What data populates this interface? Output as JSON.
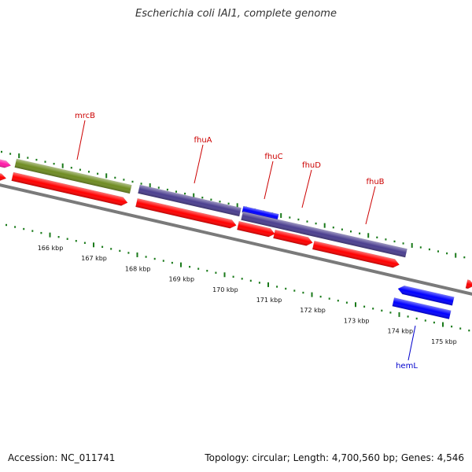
{
  "title": "Escherichia coli IAI1, complete genome",
  "footer": {
    "accession": "Accession: NC_011741",
    "topology": "Topology: circular; Length: 4,700,560 bp; Genes: 4,546"
  },
  "colors": {
    "backbone": "#7a7a7a",
    "tick": "#1a7a1a",
    "label_red": "#cc0000",
    "label_blue": "#0000cc",
    "gene_red": "#ff0000",
    "gene_green": "#6f8c22",
    "gene_purple": "#4b3f8f",
    "gene_blue": "#0000ff",
    "gene_pink": "#ff1aa8"
  },
  "gene_labels": [
    {
      "id": "mrcB",
      "text": "mrcB",
      "color": "red"
    },
    {
      "id": "fhuA",
      "text": "fhuA",
      "color": "red"
    },
    {
      "id": "fhuC",
      "text": "fhuC",
      "color": "red"
    },
    {
      "id": "fhuD",
      "text": "fhuD",
      "color": "red"
    },
    {
      "id": "fhuB",
      "text": "fhuB",
      "color": "red"
    },
    {
      "id": "hemL",
      "text": "hemL",
      "color": "blue"
    }
  ],
  "tick_labels": [
    "166 kbp",
    "167 kbp",
    "168 kbp",
    "169 kbp",
    "170 kbp",
    "171 kbp",
    "172 kbp",
    "173 kbp",
    "174 kbp",
    "175 kbp"
  ]
}
